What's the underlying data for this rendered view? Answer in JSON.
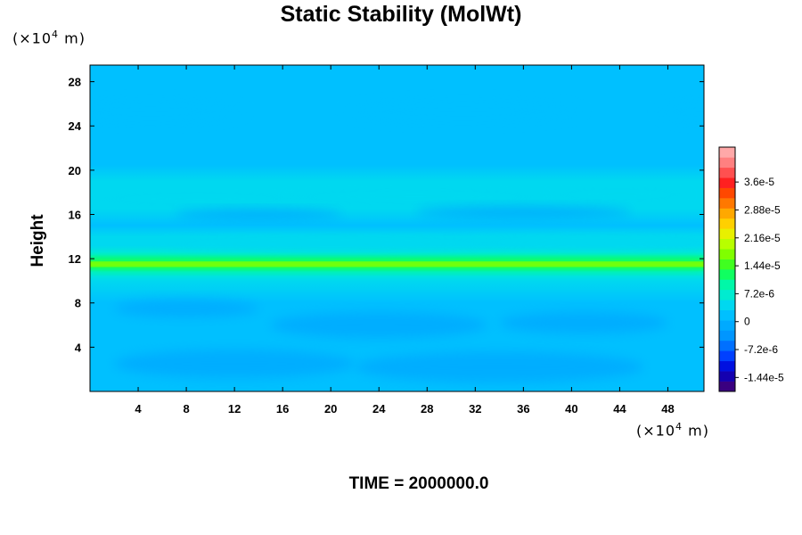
{
  "chart_data": {
    "type": "heatmap",
    "title": "Static Stability (MolWt)",
    "ylabel": "Height",
    "xlabel": "",
    "y_unit_prefix": "(×10",
    "y_unit_exp": "4",
    "y_unit_suffix": " m)",
    "x_unit_prefix": "(×10",
    "x_unit_exp": "4",
    "x_unit_suffix": " m)",
    "xlim": [
      0,
      51
    ],
    "ylim": [
      0,
      29.5
    ],
    "x_ticks": [
      4,
      8,
      12,
      16,
      20,
      24,
      28,
      32,
      36,
      40,
      44,
      48
    ],
    "y_ticks": [
      4,
      8,
      12,
      16,
      20,
      24,
      28
    ],
    "colorbar": {
      "range": [
        -1.8e-05,
        4.5e-05
      ],
      "tick_values": [
        3.6e-05,
        2.88e-05,
        2.16e-05,
        1.44e-05,
        7.2e-06,
        0,
        -7.2e-06,
        -1.44e-05
      ],
      "tick_labels": [
        "3.6e-5",
        "2.88e-5",
        "2.16e-5",
        "1.44e-5",
        "7.2e-6",
        "0",
        "-7.2e-6",
        "-1.44e-5"
      ],
      "colors": [
        "#3a0080",
        "#1400b0",
        "#0010e0",
        "#0040ff",
        "#0070ff",
        "#0096ff",
        "#00aaff",
        "#00c0ff",
        "#00d8f0",
        "#00ecd0",
        "#00f8a8",
        "#10ff60",
        "#40ff20",
        "#80ff00",
        "#b8ff00",
        "#e8f000",
        "#ffd000",
        "#ffa800",
        "#ff7800",
        "#ff4800",
        "#ff2020",
        "#ff5050",
        "#ff8080",
        "#ffa8a8"
      ]
    },
    "field_profile": [
      {
        "height": 0.5,
        "value": 1.5e-06
      },
      {
        "height": 2.0,
        "value": 2.5e-06
      },
      {
        "height": 4.0,
        "value": 1e-06
      },
      {
        "height": 6.0,
        "value": 2.5e-06
      },
      {
        "height": 8.0,
        "value": 1.5e-06
      },
      {
        "height": 10.0,
        "value": 3e-06
      },
      {
        "height": 10.8,
        "value": 6e-06
      },
      {
        "height": 11.2,
        "value": 1.3e-05
      },
      {
        "height": 11.5,
        "value": 1.7e-05
      },
      {
        "height": 11.8,
        "value": 1.2e-05
      },
      {
        "height": 12.4,
        "value": 7e-06
      },
      {
        "height": 13.2,
        "value": 5e-06
      },
      {
        "height": 14.0,
        "value": 3e-06
      },
      {
        "height": 15.0,
        "value": 2e-06
      },
      {
        "height": 16.5,
        "value": 3.5e-06
      },
      {
        "height": 17.5,
        "value": 5e-06
      },
      {
        "height": 19.0,
        "value": 3e-06
      },
      {
        "height": 20.5,
        "value": 2.5e-06
      },
      {
        "height": 22.0,
        "value": 1e-06
      },
      {
        "height": 25.0,
        "value": 2e-06
      },
      {
        "height": 29.5,
        "value": 1e-06
      }
    ]
  },
  "footer": "TIME = 2000000.0"
}
